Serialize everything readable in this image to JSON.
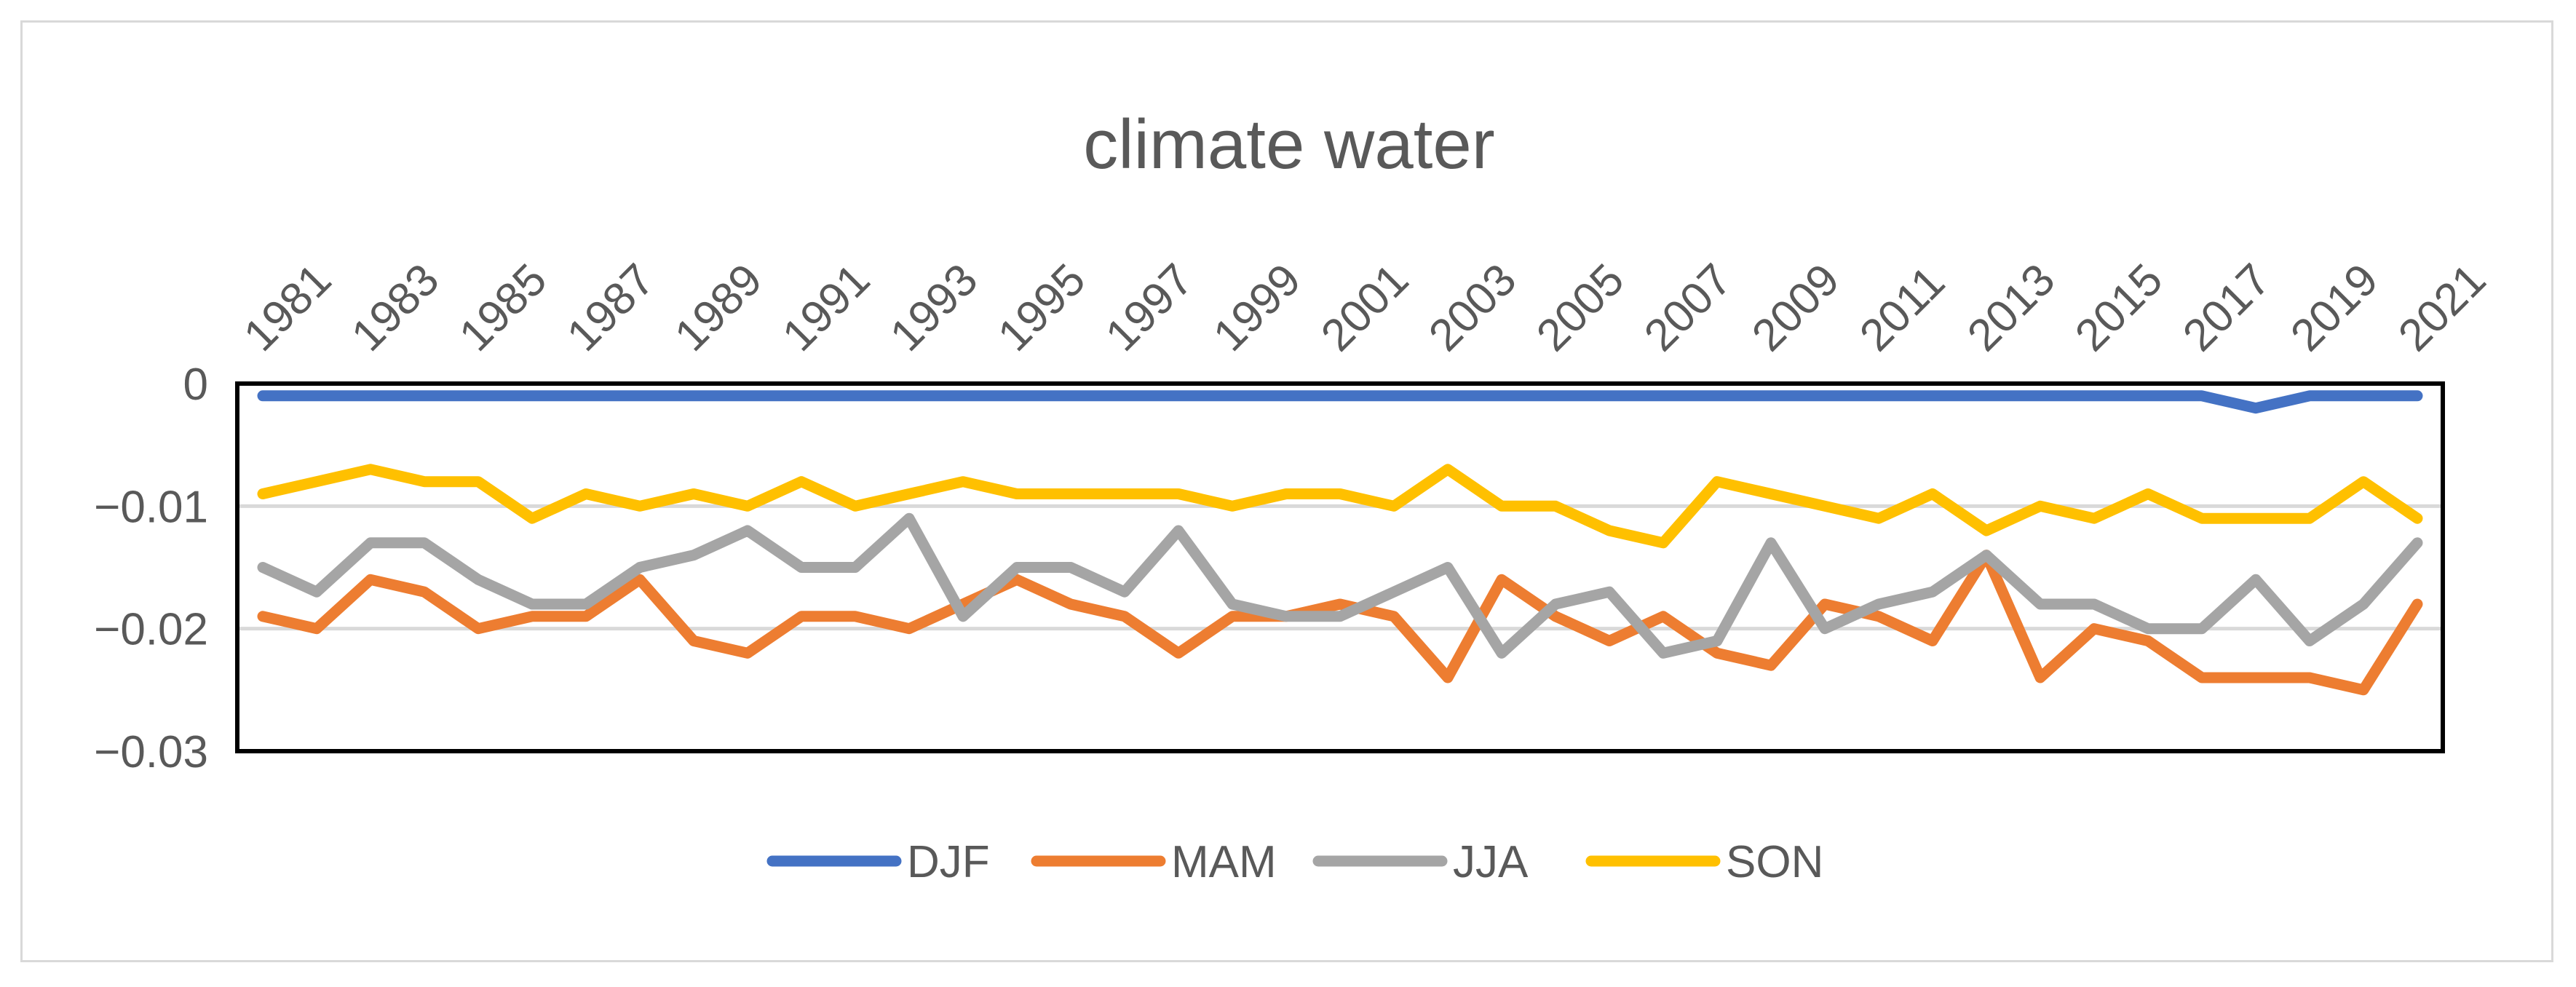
{
  "chart_data": {
    "type": "line",
    "title": "climate water",
    "xlabel": "",
    "ylabel": "",
    "ylim": [
      -0.03,
      0
    ],
    "yticks": [
      0,
      -0.01,
      -0.02,
      -0.03
    ],
    "ytick_labels": [
      "0",
      "−0.01",
      "−0.02",
      "−0.03"
    ],
    "x": [
      1981,
      1982,
      1983,
      1984,
      1985,
      1986,
      1987,
      1988,
      1989,
      1990,
      1991,
      1992,
      1993,
      1994,
      1995,
      1996,
      1997,
      1998,
      1999,
      2000,
      2001,
      2002,
      2003,
      2004,
      2005,
      2006,
      2007,
      2008,
      2009,
      2010,
      2011,
      2012,
      2013,
      2014,
      2015,
      2016,
      2017,
      2018,
      2019,
      2020,
      2021
    ],
    "x_tick_labels": [
      "1981",
      "1983",
      "1985",
      "1987",
      "1989",
      "1991",
      "1993",
      "1995",
      "1997",
      "1999",
      "2001",
      "2003",
      "2005",
      "2007",
      "2009",
      "2011",
      "2013",
      "2015",
      "2017",
      "2019",
      "2021"
    ],
    "x_axis_position": "top",
    "legend_position": "bottom",
    "grid": true,
    "series": [
      {
        "name": "DJF",
        "color": "#4472c4",
        "values": [
          -0.001,
          -0.001,
          -0.001,
          -0.001,
          -0.001,
          -0.001,
          -0.001,
          -0.001,
          -0.001,
          -0.001,
          -0.001,
          -0.001,
          -0.001,
          -0.001,
          -0.001,
          -0.001,
          -0.001,
          -0.001,
          -0.001,
          -0.001,
          -0.001,
          -0.001,
          -0.001,
          -0.001,
          -0.001,
          -0.001,
          -0.001,
          -0.001,
          -0.001,
          -0.001,
          -0.001,
          -0.001,
          -0.001,
          -0.001,
          -0.001,
          -0.001,
          -0.001,
          -0.002,
          -0.001,
          -0.001,
          -0.001
        ]
      },
      {
        "name": "MAM",
        "color": "#ed7d31",
        "values": [
          -0.019,
          -0.02,
          -0.016,
          -0.017,
          -0.02,
          -0.019,
          -0.019,
          -0.016,
          -0.021,
          -0.022,
          -0.019,
          -0.019,
          -0.02,
          -0.018,
          -0.016,
          -0.018,
          -0.019,
          -0.022,
          -0.019,
          -0.019,
          -0.018,
          -0.019,
          -0.024,
          -0.016,
          -0.019,
          -0.021,
          -0.019,
          -0.022,
          -0.023,
          -0.018,
          -0.019,
          -0.021,
          -0.014,
          -0.024,
          -0.02,
          -0.021,
          -0.024,
          -0.024,
          -0.024,
          -0.025,
          -0.018
        ]
      },
      {
        "name": "JJA",
        "color": "#a5a5a5",
        "values": [
          -0.015,
          -0.017,
          -0.013,
          -0.013,
          -0.016,
          -0.018,
          -0.018,
          -0.015,
          -0.014,
          -0.012,
          -0.015,
          -0.015,
          -0.011,
          -0.019,
          -0.015,
          -0.015,
          -0.017,
          -0.012,
          -0.018,
          -0.019,
          -0.019,
          -0.017,
          -0.015,
          -0.022,
          -0.018,
          -0.017,
          -0.022,
          -0.021,
          -0.013,
          -0.02,
          -0.018,
          -0.017,
          -0.014,
          -0.018,
          -0.018,
          -0.02,
          -0.02,
          -0.016,
          -0.021,
          -0.018,
          -0.013
        ]
      },
      {
        "name": "SON",
        "color": "#ffc000",
        "values": [
          -0.009,
          -0.008,
          -0.007,
          -0.008,
          -0.008,
          -0.011,
          -0.009,
          -0.01,
          -0.009,
          -0.01,
          -0.008,
          -0.01,
          -0.009,
          -0.008,
          -0.009,
          -0.009,
          -0.009,
          -0.009,
          -0.01,
          -0.009,
          -0.009,
          -0.01,
          -0.007,
          -0.01,
          -0.01,
          -0.012,
          -0.013,
          -0.008,
          -0.009,
          -0.01,
          -0.011,
          -0.009,
          -0.012,
          -0.01,
          -0.011,
          -0.009,
          -0.011,
          -0.011,
          -0.011,
          -0.008,
          -0.011
        ]
      }
    ]
  }
}
